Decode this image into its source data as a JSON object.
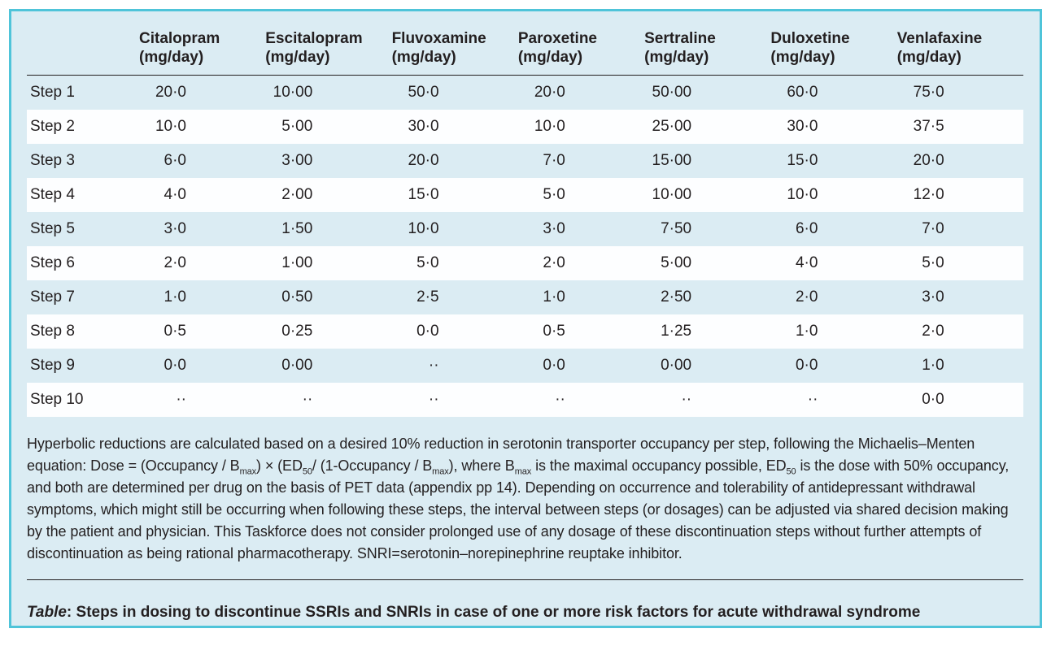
{
  "colors": {
    "panel_background": "#dbecf3",
    "panel_border": "#4fc4d9",
    "text": "#231f20",
    "row_stripe": "#fdfeff"
  },
  "table": {
    "no_data_marker": "··",
    "columns": [
      {
        "name": "Citalopram",
        "unit": "(mg/day)"
      },
      {
        "name": "Escitalopram",
        "unit": "(mg/day)"
      },
      {
        "name": "Fluvoxamine",
        "unit": "(mg/day)"
      },
      {
        "name": "Paroxetine",
        "unit": "(mg/day)"
      },
      {
        "name": "Sertraline",
        "unit": "(mg/day)"
      },
      {
        "name": "Duloxetine",
        "unit": "(mg/day)"
      },
      {
        "name": "Venlafaxine",
        "unit": "(mg/day)"
      }
    ],
    "rows": [
      {
        "label": "Step 1",
        "values": [
          "20·0",
          "10·00",
          "50·0",
          "20·0",
          "50·00",
          "60·0",
          "75·0"
        ]
      },
      {
        "label": "Step 2",
        "values": [
          "10·0",
          "5·00",
          "30·0",
          "10·0",
          "25·00",
          "30·0",
          "37·5"
        ]
      },
      {
        "label": "Step 3",
        "values": [
          "6·0",
          "3·00",
          "20·0",
          "7·0",
          "15·00",
          "15·0",
          "20·0"
        ]
      },
      {
        "label": "Step 4",
        "values": [
          "4·0",
          "2·00",
          "15·0",
          "5·0",
          "10·00",
          "10·0",
          "12·0"
        ]
      },
      {
        "label": "Step 5",
        "values": [
          "3·0",
          "1·50",
          "10·0",
          "3·0",
          "7·50",
          "6·0",
          "7·0"
        ]
      },
      {
        "label": "Step 6",
        "values": [
          "2·0",
          "1·00",
          "5·0",
          "2·0",
          "5·00",
          "4·0",
          "5·0"
        ]
      },
      {
        "label": "Step 7",
        "values": [
          "1·0",
          "0·50",
          "2·5",
          "1·0",
          "2·50",
          "2·0",
          "3·0"
        ]
      },
      {
        "label": "Step 8",
        "values": [
          "0·5",
          "0·25",
          "0·0",
          "0·5",
          "1·25",
          "1·0",
          "2·0"
        ]
      },
      {
        "label": "Step 9",
        "values": [
          "0·0",
          "0·00",
          "··",
          "0·0",
          "0·00",
          "0·0",
          "1·0"
        ]
      },
      {
        "label": "Step 10",
        "values": [
          "··",
          "··",
          "··",
          "··",
          "··",
          "··",
          "0·0"
        ]
      }
    ]
  },
  "footnote": {
    "segments": [
      {
        "text": "Hyperbolic reductions are calculated based on a desired 10% reduction in serotonin transporter occupancy per step, following the Michaelis–Menten equation: Dose = (Occupancy / B"
      },
      {
        "text": "max",
        "sub": true
      },
      {
        "text": ") × (ED"
      },
      {
        "text": "50",
        "sub": true
      },
      {
        "text": "/ (1-Occupancy / B"
      },
      {
        "text": "max",
        "sub": true
      },
      {
        "text": "), where B"
      },
      {
        "text": "max",
        "sub": true
      },
      {
        "text": " is the maximal occupancy possible, ED"
      },
      {
        "text": "50",
        "sub": true
      },
      {
        "text": " is the dose with 50% occupancy, and both are determined per drug on the basis of PET data (appendix pp 14). Depending on occurrence and tolerability of antidepressant withdrawal symptoms, which might still be occurring when following these steps, the interval between steps (or dosages) can be adjusted via shared decision making by the patient and physician. This Taskforce does not consider prolonged use of any dosage of these discontinuation steps without further attempts of discontinuation as being rational pharmacotherapy. SNRI=serotonin–norepinephrine reuptake inhibitor."
      }
    ]
  },
  "caption": {
    "label": "Table",
    "text": ": Steps in dosing to discontinue SSRIs and SNRIs in case of one or more risk factors for acute withdrawal syndrome"
  }
}
